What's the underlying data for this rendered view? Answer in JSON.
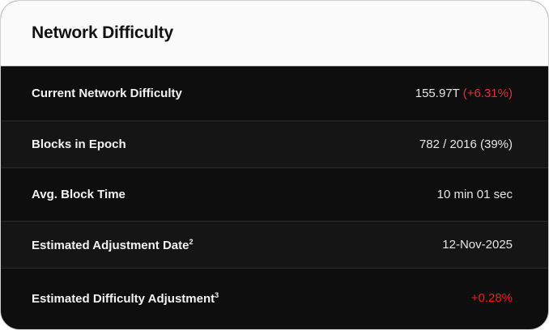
{
  "title": "Network Difficulty",
  "rows": [
    {
      "label": "Current Network Difficulty",
      "value": "155.97T",
      "change": "(+6.31%)"
    },
    {
      "label": "Blocks in Epoch",
      "value": "782 / 2016 (39%)"
    },
    {
      "label": "Avg. Block Time",
      "value": "10 min 01 sec"
    },
    {
      "label": "Estimated Adjustment Date",
      "footnote": "2",
      "value": "12-Nov-2025"
    },
    {
      "label": "Estimated Difficulty Adjustment",
      "footnote": "3",
      "value": "+0.28%"
    }
  ],
  "colors": {
    "positive_change": "#e0302e",
    "background": "#0e0e0e",
    "header": "#fafafa"
  }
}
